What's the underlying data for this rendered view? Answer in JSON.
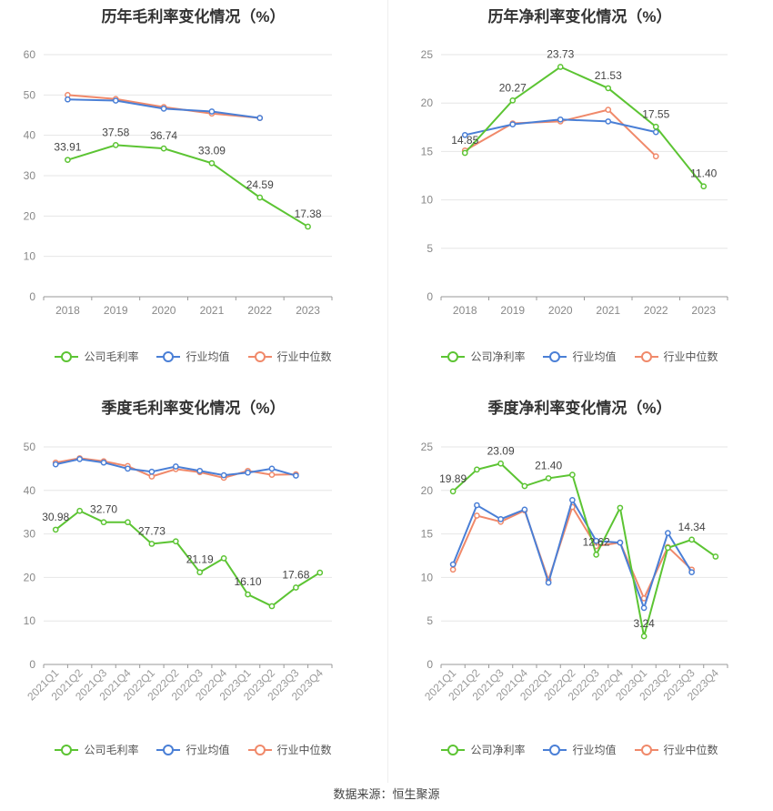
{
  "colors": {
    "company": "#5cc433",
    "industry_avg": "#4a7fd6",
    "industry_median": "#f0896a",
    "grid": "#e6e6e6",
    "axis": "#999999"
  },
  "legend_labels": {
    "gross": [
      "公司毛利率",
      "行业均值",
      "行业中位数"
    ],
    "net": [
      "公司净利率",
      "行业均值",
      "行业中位数"
    ]
  },
  "source": "数据来源：恒生聚源",
  "chart_data": [
    {
      "type": "line",
      "title": "历年毛利率变化情况（%）",
      "categories": [
        "2018",
        "2019",
        "2020",
        "2021",
        "2022",
        "2023"
      ],
      "ylim": [
        0,
        60
      ],
      "yticks": [
        0,
        10,
        20,
        30,
        40,
        50,
        60
      ],
      "series": [
        {
          "name": "公司毛利率",
          "values": [
            33.91,
            37.58,
            36.74,
            33.09,
            24.59,
            17.38
          ],
          "labels": [
            "33.91",
            "37.58",
            "36.74",
            "33.09",
            "24.59",
            "17.38"
          ]
        },
        {
          "name": "行业均值",
          "values": [
            48.9,
            48.6,
            46.6,
            45.9,
            44.3,
            null
          ]
        },
        {
          "name": "行业中位数",
          "values": [
            50.0,
            49.0,
            47.0,
            45.4,
            44.3,
            null
          ]
        }
      ]
    },
    {
      "type": "line",
      "title": "历年净利率变化情况（%）",
      "categories": [
        "2018",
        "2019",
        "2020",
        "2021",
        "2022",
        "2023"
      ],
      "ylim": [
        0,
        25
      ],
      "yticks": [
        0,
        5,
        10,
        15,
        20,
        25
      ],
      "series": [
        {
          "name": "公司净利率",
          "values": [
            14.85,
            20.27,
            23.73,
            21.53,
            17.55,
            11.4
          ],
          "labels": [
            "14.85",
            "20.27",
            "23.73",
            "21.53",
            "17.55",
            "11.40"
          ]
        },
        {
          "name": "行业均值",
          "values": [
            16.7,
            17.8,
            18.3,
            18.1,
            17.0,
            null
          ]
        },
        {
          "name": "行业中位数",
          "values": [
            15.1,
            17.9,
            18.1,
            19.3,
            14.5,
            null
          ]
        }
      ]
    },
    {
      "type": "line",
      "title": "季度毛利率变化情况（%）",
      "categories": [
        "2021Q1",
        "2021Q2",
        "2021Q3",
        "2021Q4",
        "2022Q1",
        "2022Q2",
        "2022Q3",
        "2022Q4",
        "2023Q1",
        "2023Q2",
        "2023Q3",
        "2023Q4"
      ],
      "ylim": [
        0,
        50
      ],
      "yticks": [
        0,
        10,
        20,
        30,
        40,
        50
      ],
      "series": [
        {
          "name": "公司毛利率",
          "values": [
            30.98,
            35.3,
            32.7,
            32.7,
            27.73,
            28.3,
            21.19,
            24.4,
            16.1,
            13.4,
            17.68,
            21.1
          ],
          "labels": [
            "30.98",
            "",
            "32.70",
            "",
            "27.73",
            "",
            "21.19",
            "",
            "16.10",
            "",
            "17.68",
            ""
          ]
        },
        {
          "name": "行业均值",
          "values": [
            46.0,
            47.2,
            46.4,
            45.0,
            44.3,
            45.5,
            44.5,
            43.5,
            44.1,
            45.0,
            43.4,
            null
          ]
        },
        {
          "name": "行业中位数",
          "values": [
            46.4,
            47.4,
            46.7,
            45.6,
            43.2,
            44.9,
            44.2,
            42.9,
            44.5,
            43.6,
            43.7,
            null
          ]
        }
      ]
    },
    {
      "type": "line",
      "title": "季度净利率变化情况（%）",
      "categories": [
        "2021Q1",
        "2021Q2",
        "2021Q3",
        "2021Q4",
        "2022Q1",
        "2022Q2",
        "2022Q3",
        "2022Q4",
        "2023Q1",
        "2023Q2",
        "2023Q3",
        "2023Q4"
      ],
      "ylim": [
        0,
        25
      ],
      "yticks": [
        0,
        5,
        10,
        15,
        20,
        25
      ],
      "series": [
        {
          "name": "公司净利率",
          "values": [
            19.89,
            22.4,
            23.09,
            20.5,
            21.4,
            21.8,
            12.62,
            18.0,
            3.24,
            13.4,
            14.34,
            12.4
          ],
          "labels": [
            "19.89",
            "",
            "23.09",
            "",
            "21.40",
            "",
            "12.62",
            "",
            "3.24",
            "",
            "14.34",
            ""
          ]
        },
        {
          "name": "行业均值",
          "values": [
            11.5,
            18.3,
            16.7,
            17.8,
            9.4,
            18.9,
            14.2,
            14.0,
            6.5,
            15.1,
            10.6,
            null
          ]
        },
        {
          "name": "行业中位数",
          "values": [
            10.9,
            17.1,
            16.4,
            17.7,
            9.7,
            18.1,
            13.6,
            14.0,
            7.6,
            13.5,
            10.9,
            null
          ]
        }
      ]
    }
  ]
}
